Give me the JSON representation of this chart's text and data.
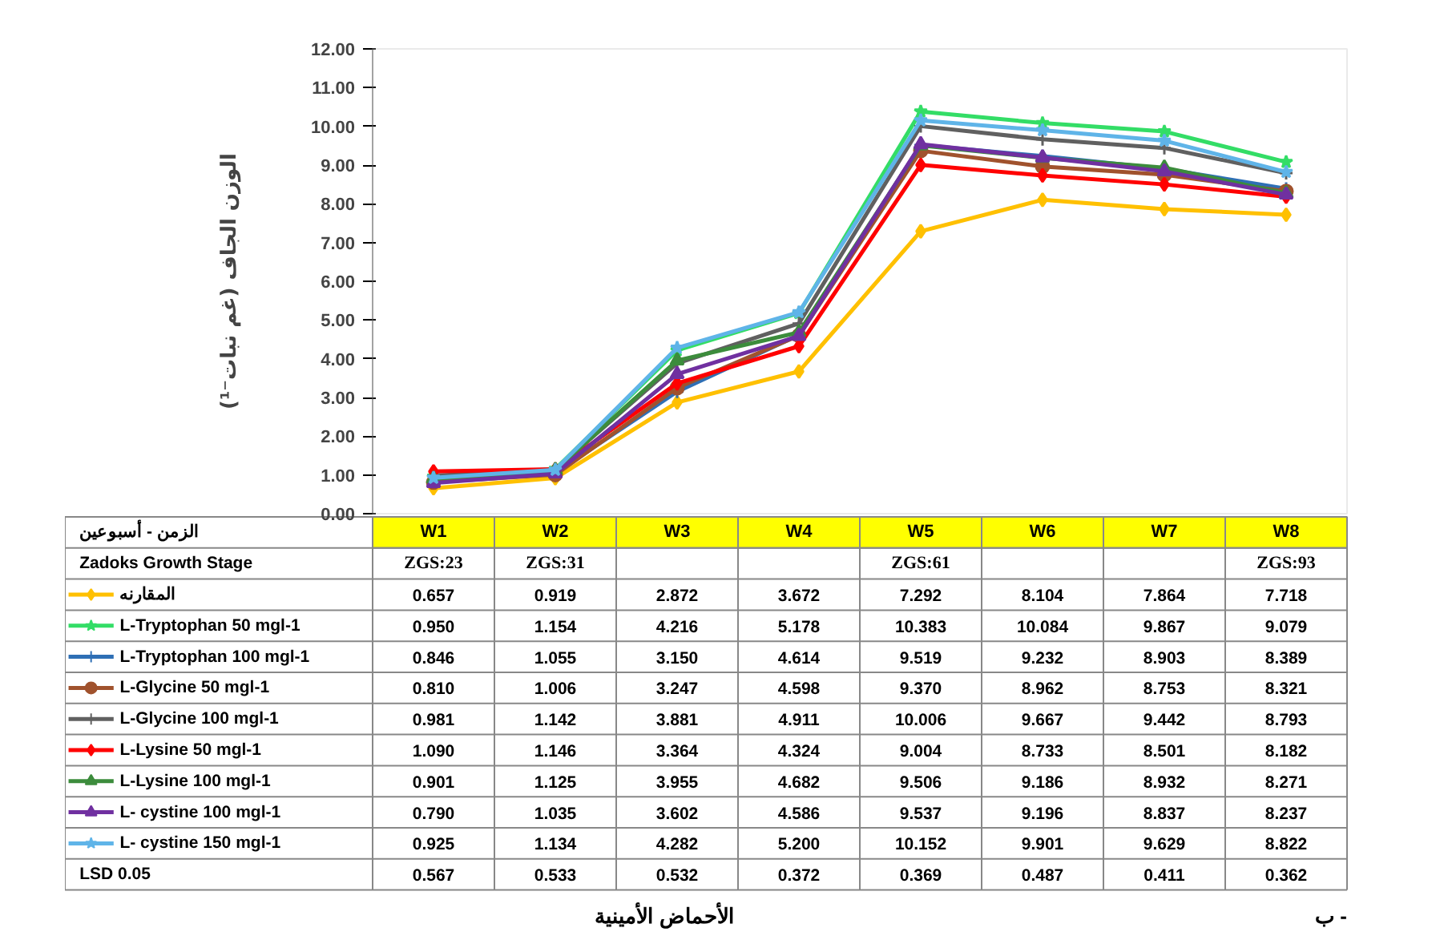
{
  "chart_data": {
    "type": "line",
    "ylabel": "الوزن الجاف (غم نبات⁻¹)",
    "categories": [
      "W1\nZGS:23",
      "W2\nZGS:31",
      "W3",
      "W4",
      "W5\nZGS:61",
      "W6",
      "W7",
      "W8\nZGS:93"
    ],
    "ylim": [
      0,
      12
    ],
    "yticks": [
      {
        "value": 0,
        "label": "0.00"
      },
      {
        "value": 1,
        "label": "1.00"
      },
      {
        "value": 2,
        "label": "2.00"
      },
      {
        "value": 3,
        "label": "3.00"
      },
      {
        "value": 4,
        "label": "4.00"
      },
      {
        "value": 5,
        "label": "5.00"
      },
      {
        "value": 6,
        "label": "6.00"
      },
      {
        "value": 7,
        "label": "7.00"
      },
      {
        "value": 8,
        "label": "8.00"
      },
      {
        "value": 9,
        "label": "9.00"
      },
      {
        "value": 10,
        "label": "10.00"
      },
      {
        "value": 11,
        "label": "11.00"
      },
      {
        "value": 12,
        "label": "12.00"
      }
    ],
    "grid": false,
    "legend": "bottom left",
    "line_style": "solid",
    "series": [
      {
        "name": "المقارنه",
        "color": "#ffc000",
        "marker": "diamond",
        "values": [
          0.657,
          0.919,
          2.872,
          3.672,
          7.292,
          8.104,
          7.864,
          7.718
        ],
        "value_labels": [
          "0.657",
          "0.919",
          "2.872",
          "3.672",
          "7.292",
          "8.104",
          "7.864",
          "7.718"
        ]
      },
      {
        "name": "L-Tryptophan  50 mgl-1",
        "color": "#33dd66",
        "marker": "star",
        "values": [
          0.95,
          1.154,
          4.216,
          5.178,
          10.383,
          10.084,
          9.867,
          9.079
        ],
        "value_labels": [
          "0.950",
          "1.154",
          "4.216",
          "5.178",
          "10.383",
          "10.084",
          "9.867",
          "9.079"
        ]
      },
      {
        "name": "L-Tryptophan  100 mgl-1",
        "color": "#2e6fb5",
        "marker": "cross",
        "values": [
          0.846,
          1.055,
          3.15,
          4.614,
          9.519,
          9.232,
          8.903,
          8.389
        ],
        "value_labels": [
          "0.846",
          "1.055",
          "3.150",
          "4.614",
          "9.519",
          "9.232",
          "8.903",
          "8.389"
        ]
      },
      {
        "name": "L-Glycine  50 mgl-1",
        "color": "#a0522d",
        "marker": "circle",
        "values": [
          0.81,
          1.006,
          3.247,
          4.598,
          9.37,
          8.962,
          8.753,
          8.321
        ],
        "value_labels": [
          "0.810",
          "1.006",
          "3.247",
          "4.598",
          "9.370",
          "8.962",
          "8.753",
          "8.321"
        ]
      },
      {
        "name": "L-Glycine  100 mgl-1",
        "color": "#606060",
        "marker": "cross",
        "values": [
          0.981,
          1.142,
          3.881,
          4.911,
          10.006,
          9.667,
          9.442,
          8.793
        ],
        "value_labels": [
          "0.981",
          "1.142",
          "3.881",
          "4.911",
          "10.006",
          "9.667",
          "9.442",
          "8.793"
        ]
      },
      {
        "name": "L-Lysine 50 mgl-1",
        "color": "#ff0000",
        "marker": "diamond",
        "values": [
          1.09,
          1.146,
          3.364,
          4.324,
          9.004,
          8.733,
          8.501,
          8.182
        ],
        "value_labels": [
          "1.090",
          "1.146",
          "3.364",
          "4.324",
          "9.004",
          "8.733",
          "8.501",
          "8.182"
        ]
      },
      {
        "name": "L-Lysine  100 mgl-1",
        "color": "#3c8c3c",
        "marker": "triangle",
        "values": [
          0.901,
          1.125,
          3.955,
          4.682,
          9.506,
          9.186,
          8.932,
          8.271
        ],
        "value_labels": [
          "0.901",
          "1.125",
          "3.955",
          "4.682",
          "9.506",
          "9.186",
          "8.932",
          "8.271"
        ]
      },
      {
        "name": "L- cystine 100 mgl-1",
        "color": "#7030a0",
        "marker": "triangle",
        "values": [
          0.79,
          1.035,
          3.602,
          4.586,
          9.537,
          9.196,
          8.837,
          8.237
        ],
        "value_labels": [
          "0.790",
          "1.035",
          "3.602",
          "4.586",
          "9.537",
          "9.196",
          "8.837",
          "8.237"
        ]
      },
      {
        "name": "L- cystine 150 mgl-1",
        "color": "#5fb4e8",
        "marker": "star",
        "values": [
          0.925,
          1.134,
          4.282,
          5.2,
          10.152,
          9.901,
          9.629,
          8.822
        ],
        "value_labels": [
          "0.925",
          "1.134",
          "4.282",
          "5.200",
          "10.152",
          "9.901",
          "9.629",
          "8.822"
        ]
      }
    ],
    "annotations": [
      "الزمن - أسبوعين",
      "Zadoks Growth Stage",
      "LSD 0.05",
      "0.567",
      "0.533",
      "0.532",
      "0.372",
      "0.369",
      "0.487",
      "0.411",
      "0.362",
      "الأحماض الأمينية",
      "ب -"
    ]
  }
}
